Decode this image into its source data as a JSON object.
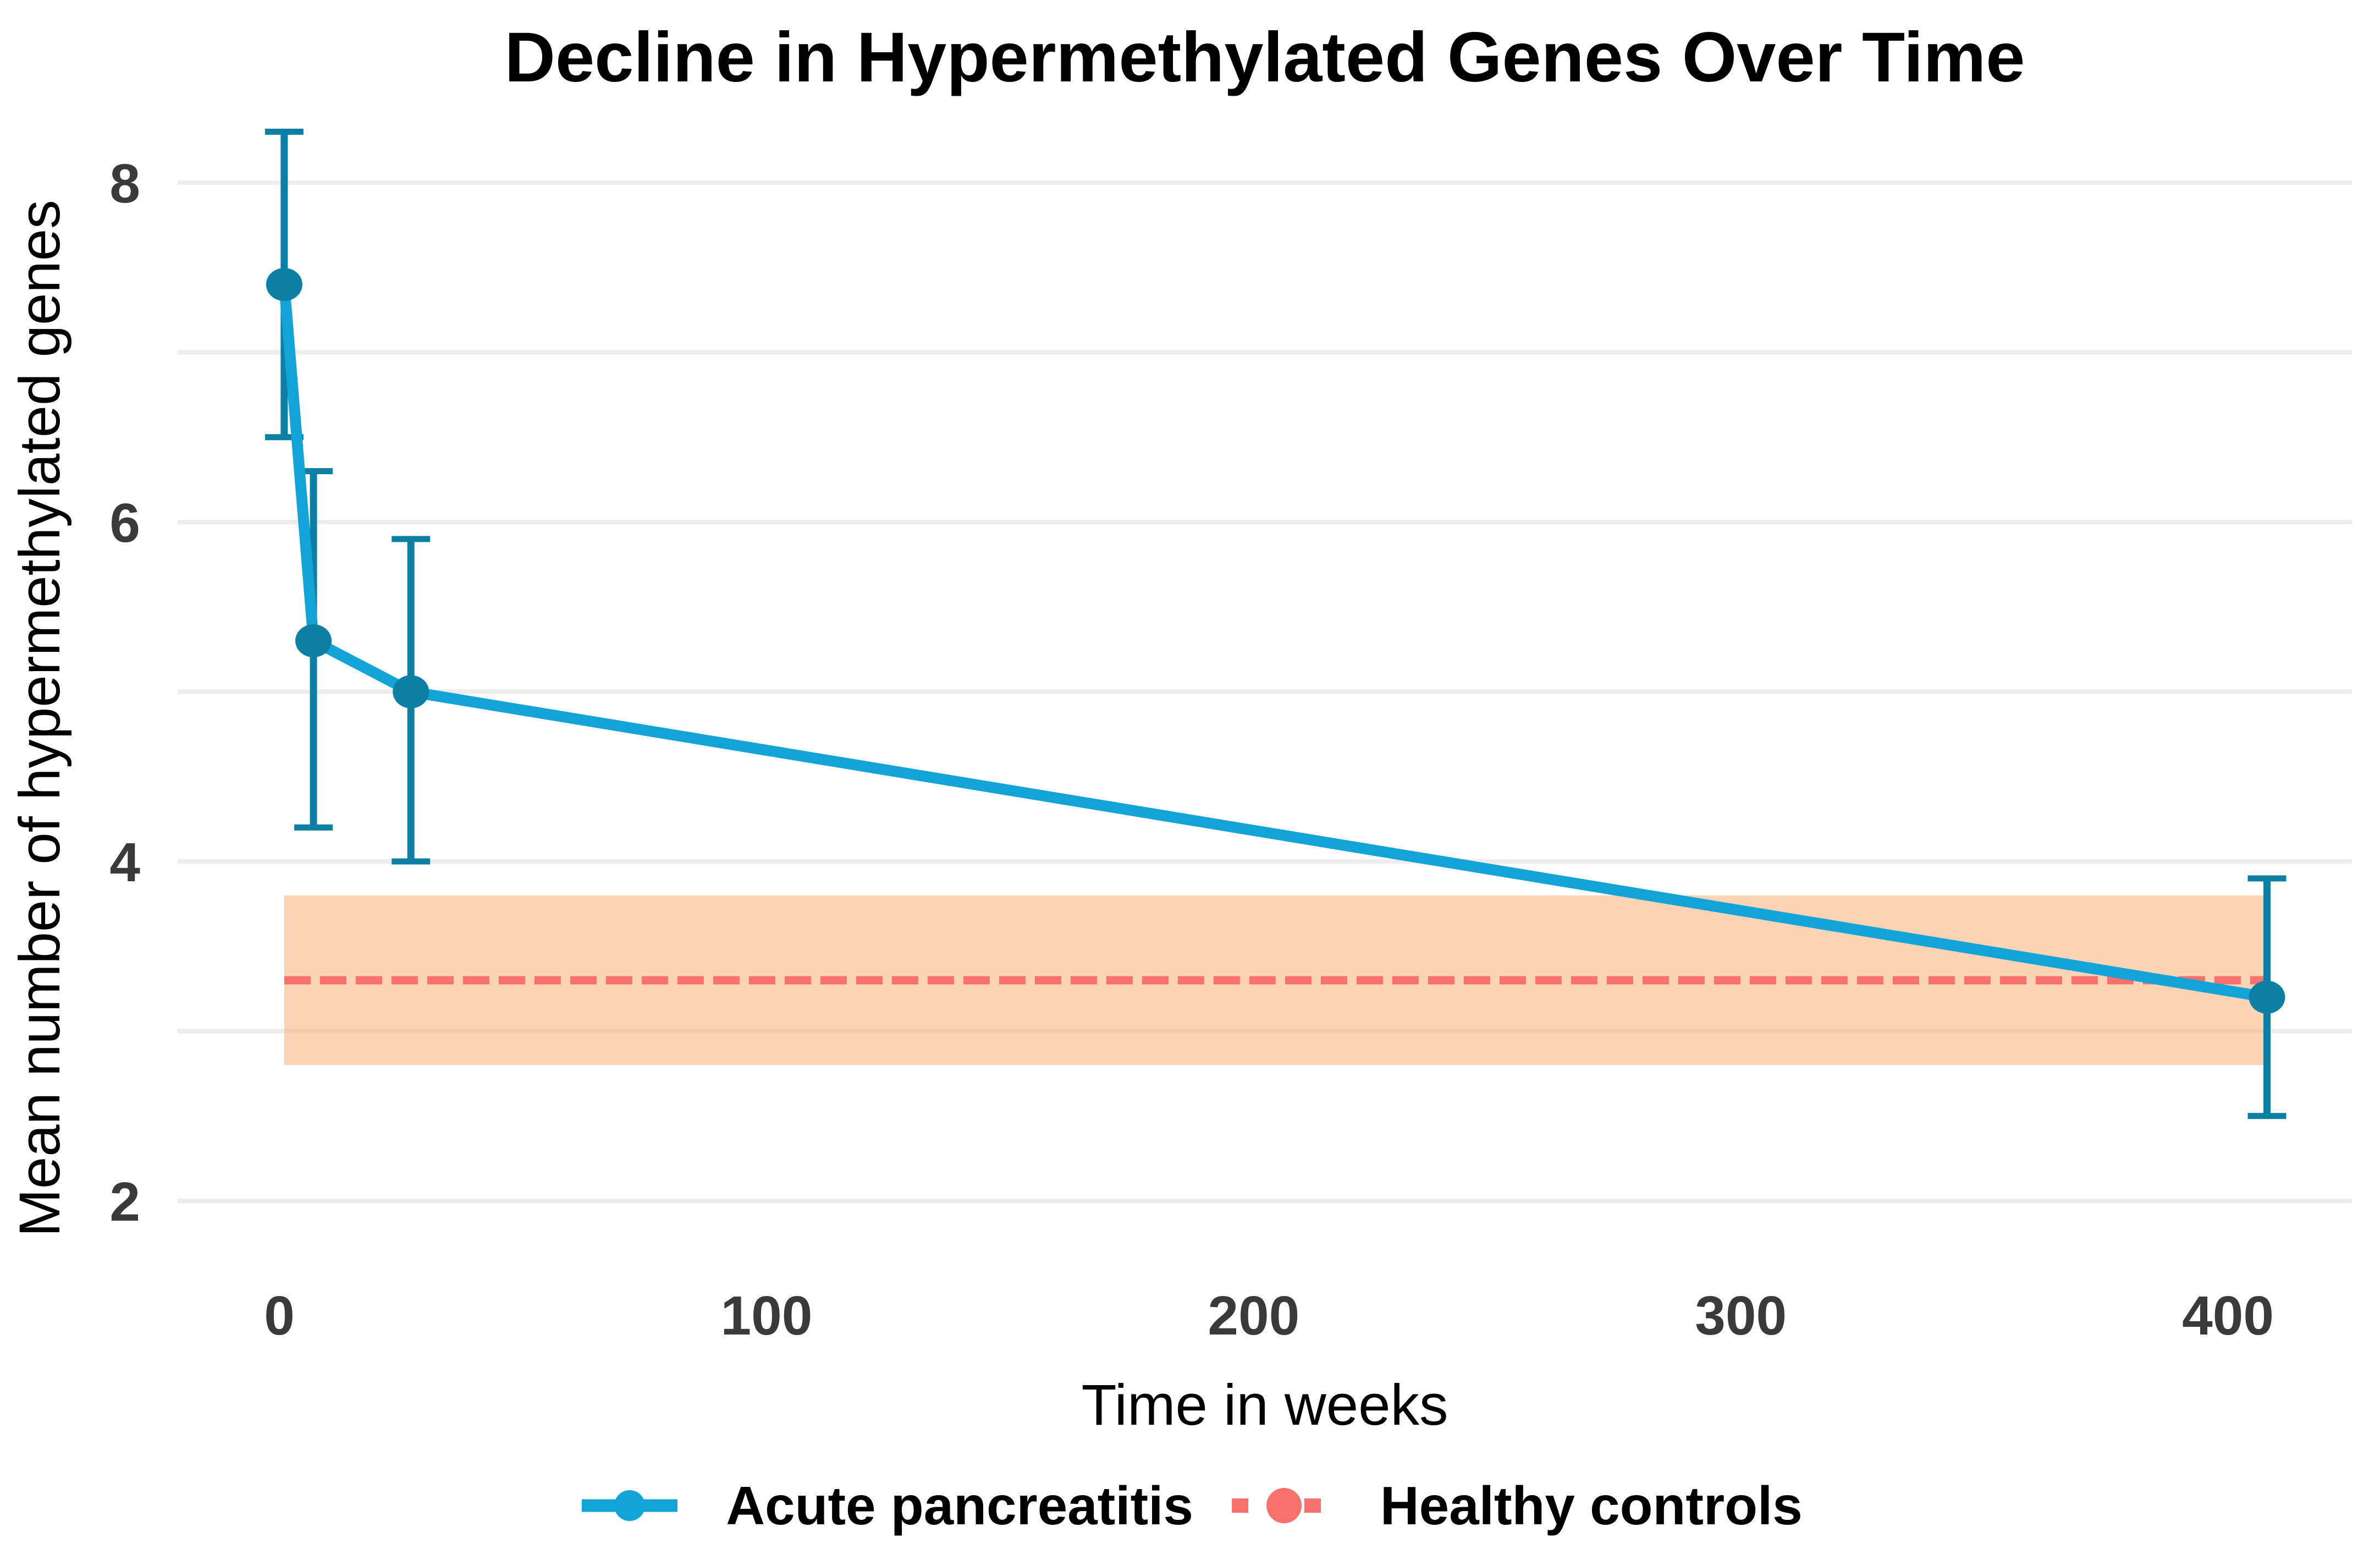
{
  "chart_data": {
    "type": "line",
    "title": "Decline in Hypermethylated Genes Over Time",
    "xlabel": "Time in weeks",
    "ylabel": "Mean number of hypermethylated genes",
    "x_ticks": [
      0,
      100,
      200,
      300,
      400
    ],
    "y_ticks": [
      2,
      4,
      6,
      8
    ],
    "y_gridlines": [
      2,
      3,
      4,
      5,
      6,
      7,
      8
    ],
    "xlim": [
      -20,
      425
    ],
    "ylim": [
      1.8,
      8.5
    ],
    "grid": "horizontal-only",
    "legend_position": "bottom",
    "series": [
      {
        "name": "Acute pancreatitis",
        "type": "line+pointrange",
        "x_weeks": [
          1,
          7,
          27,
          408
        ],
        "mean": [
          7.4,
          5.3,
          5.0,
          3.2
        ],
        "ci_lower": [
          6.5,
          4.2,
          4.0,
          2.5
        ],
        "ci_upper": [
          8.3,
          6.3,
          5.9,
          3.9
        ],
        "line_color": "#12A3D8",
        "point_color": "#0E7FA4"
      },
      {
        "name": "Healthy controls",
        "type": "reference-band+dashed-mean",
        "x_range_weeks": [
          1,
          408
        ],
        "mean": 3.3,
        "band_lower": 2.8,
        "band_upper": 3.8,
        "line_color": "#F8716C",
        "band_color": "#F7AE78",
        "band_opacity": 0.55
      }
    ],
    "colors": {
      "background": "#FFFFFF",
      "gridline": "#EDEDED",
      "tick_label": "#3A3A3A",
      "text": "#000000"
    }
  }
}
